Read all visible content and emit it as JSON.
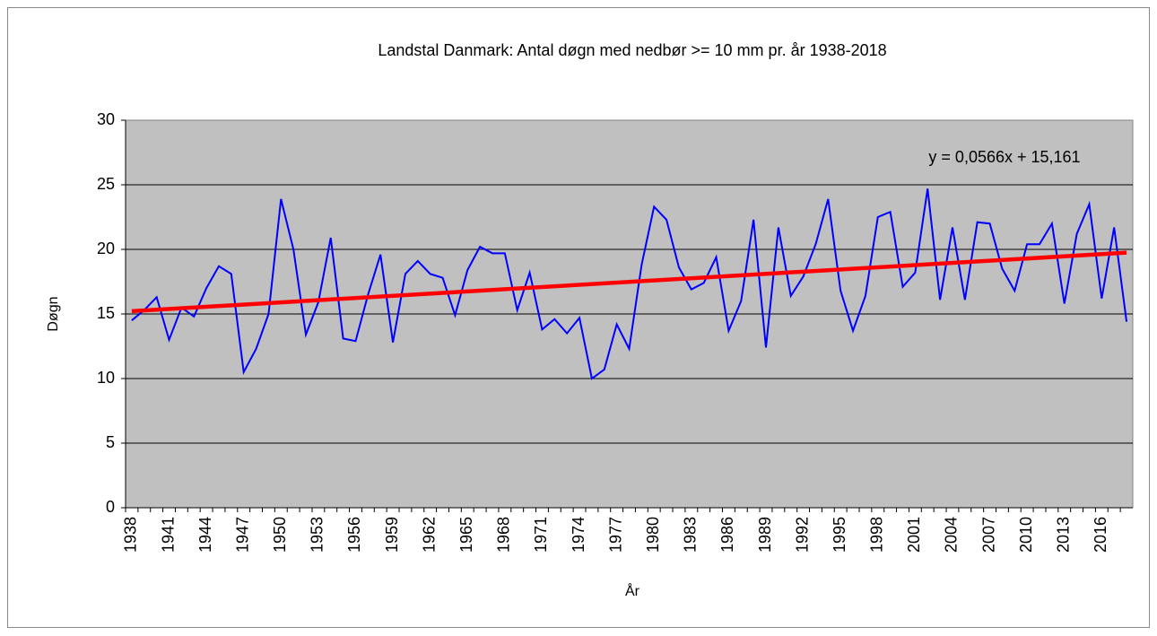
{
  "chart_data": {
    "type": "line",
    "title": "Landstal Danmark: Antal  døgn med nedbør >= 10 mm pr. år 1938-2018",
    "x_label": "År",
    "y_label": "Døgn",
    "categories": [
      "1938",
      null,
      null,
      "1941",
      null,
      null,
      "1944",
      null,
      null,
      "1947",
      null,
      null,
      "1950",
      null,
      null,
      "1953",
      null,
      null,
      "1956",
      null,
      null,
      "1959",
      null,
      null,
      "1962",
      null,
      null,
      "1965",
      null,
      null,
      "1968",
      null,
      null,
      "1971",
      null,
      null,
      "1974",
      null,
      null,
      "1977",
      null,
      null,
      "1980",
      null,
      null,
      "1983",
      null,
      null,
      "1986",
      null,
      null,
      "1989",
      null,
      null,
      "1992",
      null,
      null,
      "1995",
      null,
      null,
      "1998",
      null,
      null,
      "2001",
      null,
      null,
      "2004",
      null,
      null,
      "2007",
      null,
      null,
      "2010",
      null,
      null,
      "2013",
      null,
      null,
      "2016",
      null,
      null
    ],
    "values": [
      14.5,
      15.3,
      16.3,
      13.0,
      15.5,
      14.8,
      17.0,
      18.7,
      18.1,
      10.5,
      12.3,
      15.0,
      23.9,
      20.0,
      13.4,
      15.9,
      20.9,
      13.1,
      12.9,
      16.5,
      19.6,
      12.8,
      18.1,
      19.1,
      18.1,
      17.8,
      14.9,
      18.4,
      20.2,
      19.7,
      19.7,
      15.3,
      18.2,
      13.8,
      14.6,
      13.5,
      14.7,
      10.0,
      10.7,
      14.2,
      12.3,
      18.8,
      23.3,
      22.3,
      18.6,
      16.9,
      17.4,
      19.4,
      13.7,
      16.0,
      22.3,
      12.4,
      21.7,
      16.4,
      17.9,
      20.4,
      23.9,
      16.8,
      13.7,
      16.4,
      22.5,
      22.9,
      17.1,
      18.2,
      24.7,
      16.1,
      21.7,
      16.1,
      22.1,
      22.0,
      18.5,
      16.8,
      20.4,
      20.4,
      22.0,
      15.8,
      21.2,
      23.5,
      16.2,
      21.7,
      14.4
    ],
    "color": "#0000ff",
    "trendline": {
      "label": "y = 0,0566x + 15,161",
      "slope": 0.0566,
      "intercept": 15.161,
      "color": "#ff0000"
    },
    "ylim": [
      0,
      30
    ],
    "yticks": [
      0,
      5,
      10,
      15,
      20,
      25,
      30
    ],
    "grid": true
  }
}
